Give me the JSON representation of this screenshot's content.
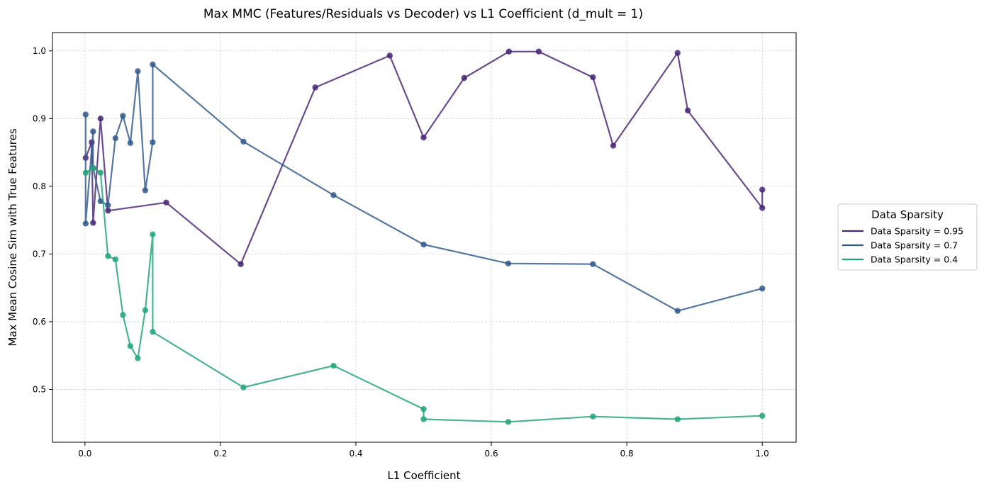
{
  "chart_data": {
    "type": "line",
    "title": "Max MMC (Features/Residuals vs Decoder) vs L1 Coefficient (d_mult = 1)",
    "xlabel": "L1 Coefficient",
    "ylabel": "Max Mean Cosine Sim with True Features",
    "xlim": [
      -0.048,
      1.05
    ],
    "ylim": [
      0.422,
      1.027
    ],
    "xticks": [
      0.0,
      0.2,
      0.4,
      0.6,
      0.8,
      1.0
    ],
    "xtick_labels": [
      "0.0",
      "0.2",
      "0.4",
      "0.6",
      "0.8",
      "1.0"
    ],
    "yticks": [
      0.5,
      0.6,
      0.7,
      0.8,
      0.9,
      1.0
    ],
    "ytick_labels": [
      "0.5",
      "0.6",
      "0.7",
      "0.8",
      "0.9",
      "1.0"
    ],
    "grid": true,
    "legend": {
      "title": "Data Sparsity",
      "placement": "center-right outside",
      "entries": [
        "Data Sparsity = 0.95",
        "Data Sparsity = 0.7",
        "Data Sparsity = 0.4"
      ]
    },
    "series": [
      {
        "name": "Data Sparsity = 0.95",
        "color": "#482576",
        "x": [
          0.001,
          0.01,
          0.012,
          0.023,
          0.034,
          0.12,
          0.23,
          0.34,
          0.45,
          0.5,
          0.56,
          0.626,
          0.67,
          0.75,
          0.78,
          0.875,
          0.89,
          1.0,
          1.0
        ],
        "y": [
          0.842,
          0.865,
          0.746,
          0.9,
          0.764,
          0.776,
          0.685,
          0.946,
          0.993,
          0.872,
          0.96,
          0.999,
          0.999,
          0.961,
          0.86,
          0.997,
          0.912,
          0.768,
          0.795
        ]
      },
      {
        "name": "Data Sparsity = 0.7",
        "color": "#30598b",
        "x": [
          0.001,
          0.001,
          0.012,
          0.012,
          0.023,
          0.034,
          0.045,
          0.056,
          0.067,
          0.078,
          0.089,
          0.1,
          0.1,
          0.234,
          0.367,
          0.5,
          0.625,
          0.75,
          0.875,
          1.0
        ],
        "y": [
          0.906,
          0.745,
          0.881,
          0.827,
          0.778,
          0.772,
          0.871,
          0.904,
          0.864,
          0.97,
          0.794,
          0.865,
          0.98,
          0.866,
          0.787,
          0.714,
          0.686,
          0.685,
          0.616,
          0.649
        ]
      },
      {
        "name": "Data Sparsity = 0.4",
        "color": "#21a37b",
        "x": [
          0.001,
          0.012,
          0.023,
          0.034,
          0.045,
          0.056,
          0.067,
          0.078,
          0.089,
          0.1,
          0.1,
          0.234,
          0.367,
          0.5,
          0.5,
          0.625,
          0.75,
          0.875,
          1.0
        ],
        "y": [
          0.82,
          0.827,
          0.82,
          0.697,
          0.692,
          0.61,
          0.564,
          0.546,
          0.617,
          0.729,
          0.585,
          0.503,
          0.535,
          0.471,
          0.456,
          0.452,
          0.46,
          0.456,
          0.461
        ]
      }
    ]
  }
}
